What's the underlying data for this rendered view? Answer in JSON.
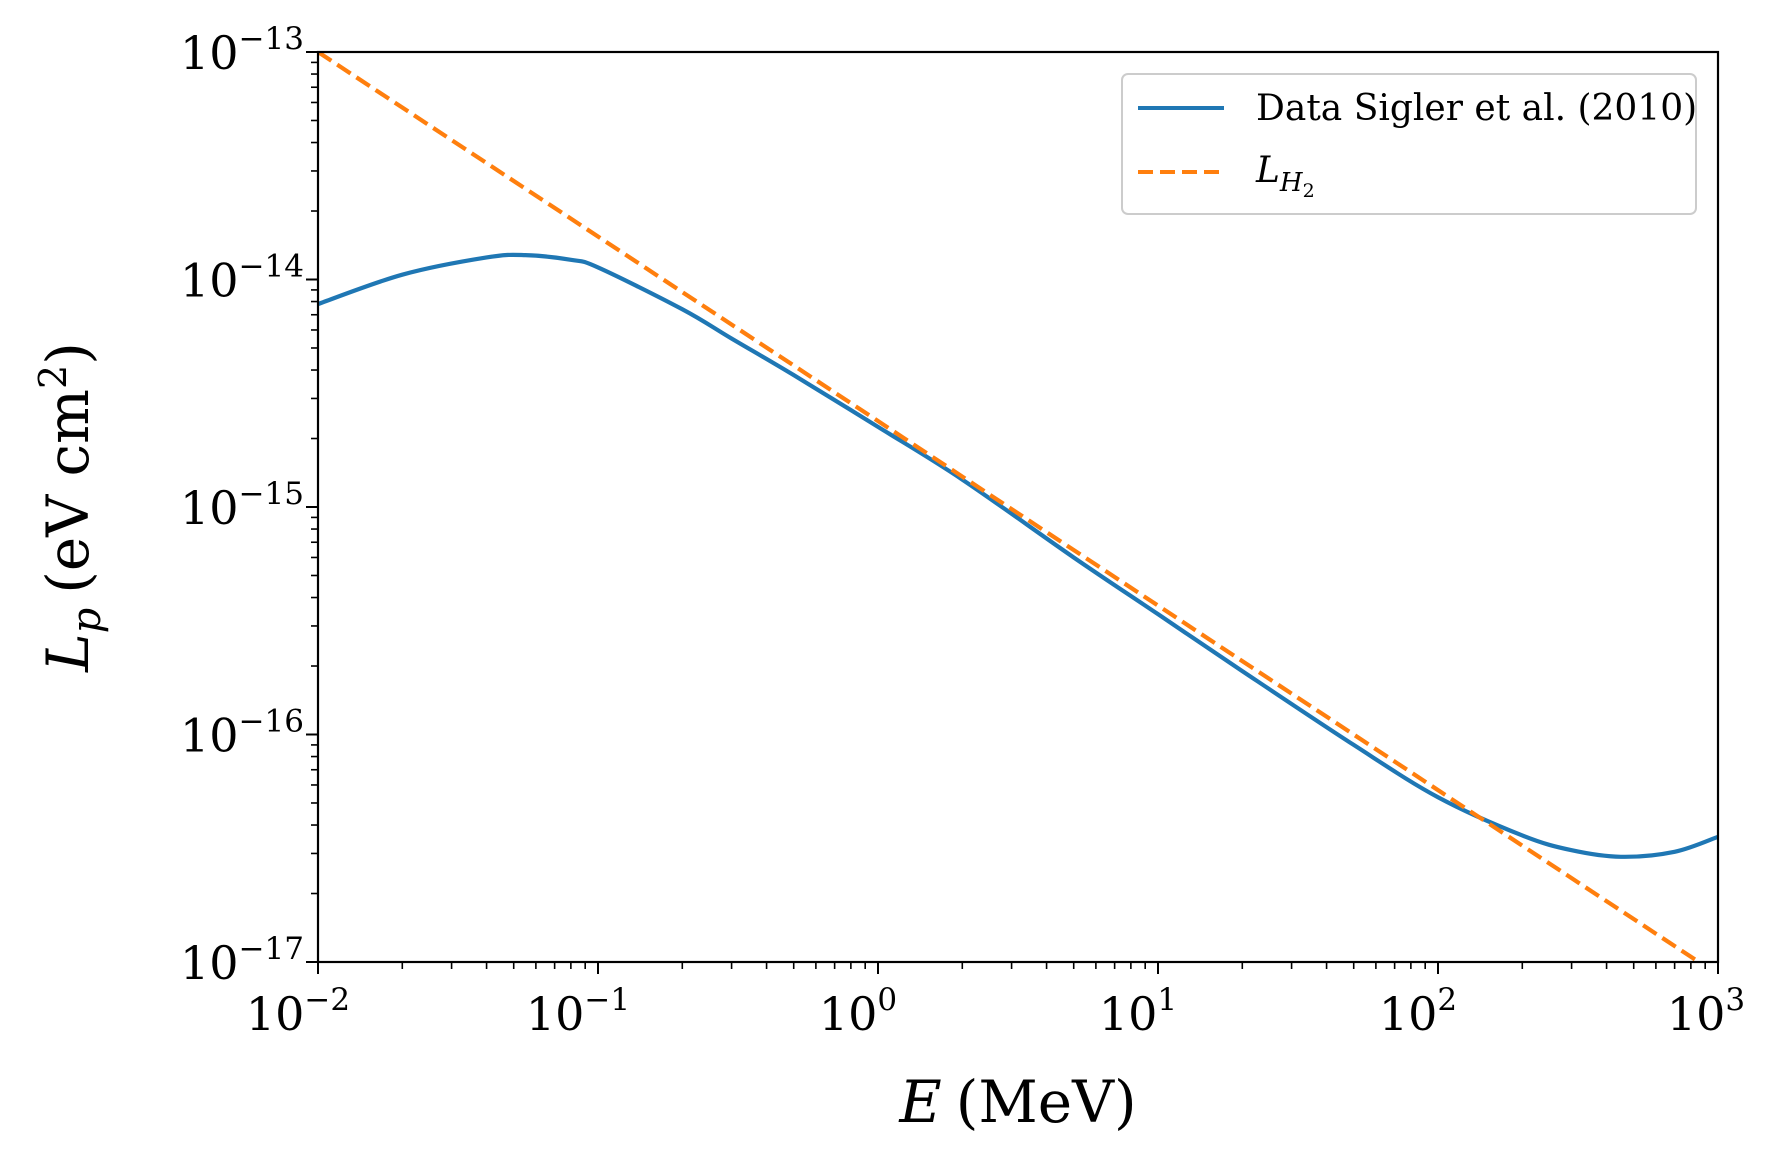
{
  "chart_data": {
    "type": "line",
    "title": "",
    "xscale": "log",
    "yscale": "log",
    "xlim": [
      0.01,
      1000
    ],
    "ylim": [
      1e-17,
      1e-13
    ],
    "xlabel": {
      "symbol": "E",
      "unit": "(MeV)"
    },
    "ylabel": {
      "symbol": "L",
      "sub": "p",
      "unit_prefix": "(eV cm",
      "unit_sup": "2",
      "unit_suffix": ")"
    },
    "xticks": [
      {
        "value": 0.01,
        "base": "10",
        "exp": "−2"
      },
      {
        "value": 0.1,
        "base": "10",
        "exp": "−1"
      },
      {
        "value": 1,
        "base": "10",
        "exp": "0"
      },
      {
        "value": 10,
        "base": "10",
        "exp": "1"
      },
      {
        "value": 100,
        "base": "10",
        "exp": "2"
      },
      {
        "value": 1000,
        "base": "10",
        "exp": "3"
      }
    ],
    "yticks": [
      {
        "value": 1e-13,
        "base": "10",
        "exp": "−13"
      },
      {
        "value": 1e-14,
        "base": "10",
        "exp": "−14"
      },
      {
        "value": 1e-15,
        "base": "10",
        "exp": "−15"
      },
      {
        "value": 1e-16,
        "base": "10",
        "exp": "−16"
      },
      {
        "value": 1e-17,
        "base": "10",
        "exp": "−17"
      }
    ],
    "legend_position": "top-right",
    "series": [
      {
        "name": "Data Sigler et al. (2010)",
        "color": "#1f77b4",
        "style": "solid",
        "x": [
          0.01,
          0.02,
          0.04,
          0.055,
          0.08,
          0.1,
          0.2,
          0.3,
          0.5,
          1,
          2,
          5,
          10,
          20,
          50,
          100,
          200,
          300,
          450,
          700,
          1000
        ],
        "y": [
          7.8e-15,
          1.05e-14,
          1.25e-14,
          1.28e-14,
          1.22e-14,
          1.13e-14,
          7.4e-15,
          5.5e-15,
          3.8e-15,
          2.25e-15,
          1.32e-15,
          6e-16,
          3.38e-16,
          1.9e-16,
          9e-17,
          5.3e-17,
          3.6e-17,
          3.1e-17,
          2.9e-17,
          3.05e-17,
          3.55e-17
        ]
      },
      {
        "name": "L_H2",
        "label_base": "L",
        "label_sub": "H",
        "label_subsub": "2",
        "color": "#ff7f0e",
        "style": "dashed",
        "x": [
          0.01,
          1000
        ],
        "y": [
          1e-13,
          8.8e-18
        ]
      }
    ]
  }
}
